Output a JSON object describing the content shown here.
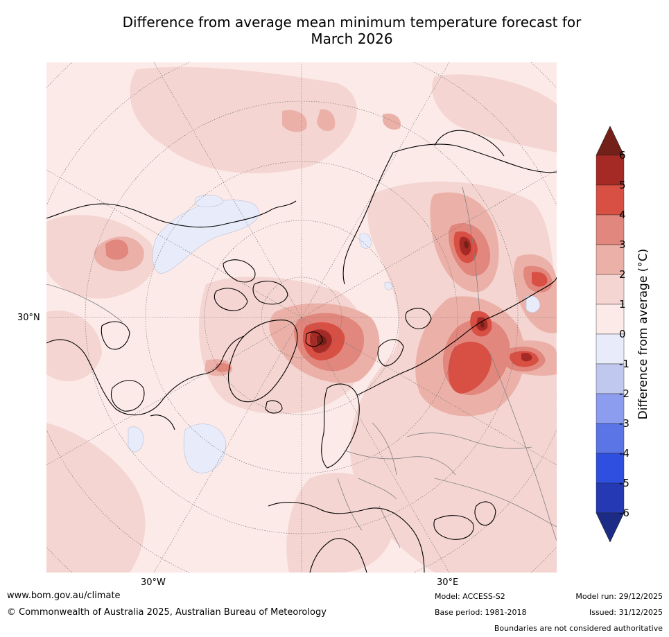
{
  "title_line1": "Difference from average mean minimum temperature forecast for",
  "title_line2": "March 2026",
  "map": {
    "graticule_labels": {
      "lat": "30°N",
      "lon_west": "30°W",
      "lon_east": "30°E"
    },
    "colors": {
      "background": "#fbeae8",
      "level_1_2": "#f4d5d1",
      "level_2_3": "#ebb1a8",
      "level_3_4": "#e2877d",
      "level_4_5": "#d84f44",
      "level_5_6": "#a52a25",
      "level_above_6": "#722018",
      "level_minus": "#e8ecfa",
      "coastline": "#000000",
      "border": "#808080"
    }
  },
  "colorbar": {
    "label": "Difference from average (°C)",
    "ticks": [
      "6",
      "5",
      "4",
      "3",
      "2",
      "1",
      "0",
      "-1",
      "-2",
      "-3",
      "-4",
      "-5",
      "-6"
    ],
    "colors_top_to_bottom": [
      "#722018",
      "#a52a25",
      "#d84f44",
      "#e2877d",
      "#ebb1a8",
      "#f4d5d1",
      "#fbeae8",
      "#e8ecfa",
      "#c0c8f0",
      "#8c9df0",
      "#5b74e6",
      "#2f4fe0",
      "#2539b4",
      "#1c2b85"
    ]
  },
  "footer": {
    "url": "www.bom.gov.au/climate",
    "copyright": "© Commonwealth of Australia 2025, Australian Bureau of Meteorology",
    "model": "Model: ACCESS-S2",
    "base_period": "Base period: 1981-2018",
    "model_run": "Model run: 29/12/2025",
    "issued": "Issued: 31/12/2025",
    "disclaimer": "Boundaries are not considered authoritative"
  }
}
